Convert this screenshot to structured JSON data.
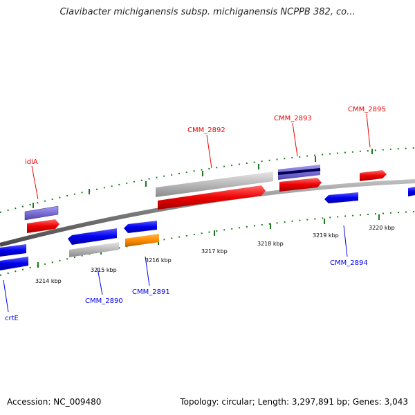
{
  "title": "Clavibacter michiganensis subsp. michiganensis NCPPB 382, co...",
  "footer": {
    "accession": "Accession: NC_009480",
    "stats": "Topology: circular; Length: 3,297,891 bp; Genes: 3,043"
  },
  "colors": {
    "forward_gene": "#ee0000",
    "reverse_gene": "#0000ee",
    "pseudo_or_other": "#b8b8b8",
    "highlight": "#ff8c00",
    "purple": "#7b6fd6",
    "backbone": "#7a7a7a",
    "ticks": "#1a7a1a"
  },
  "scale_labels": [
    "3214 kbp",
    "3215 kbp",
    "3216 kbp",
    "3217 kbp",
    "3218 kbp",
    "3219 kbp",
    "3220 kbp"
  ],
  "labels": {
    "forward": [
      "idiA",
      "CMM_2892",
      "CMM_2893",
      "CMM_2895"
    ],
    "reverse": [
      "crtE",
      "CMM_2890",
      "CMM_2891",
      "CMM_2894"
    ]
  }
}
